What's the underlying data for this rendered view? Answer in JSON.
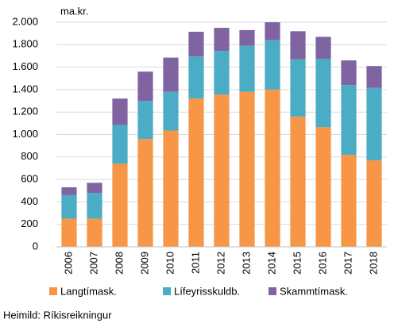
{
  "chart_data": {
    "type": "stacked_bar",
    "unit_label": "ma.kr.",
    "source": "Heimild: Ríkisreikningur",
    "categories": [
      "2006",
      "2007",
      "2008",
      "2009",
      "2010",
      "2011",
      "2012",
      "2013",
      "2014",
      "2015",
      "2016",
      "2017",
      "2018"
    ],
    "series": [
      {
        "name": "Langtímask.",
        "color": "#f79646",
        "values": [
          250,
          250,
          740,
          960,
          1035,
          1320,
          1355,
          1380,
          1400,
          1160,
          1065,
          820,
          770
        ]
      },
      {
        "name": "Lífeyrisskuldb.",
        "color": "#4bacc6",
        "values": [
          210,
          230,
          345,
          340,
          345,
          375,
          390,
          410,
          440,
          510,
          610,
          620,
          645
        ]
      },
      {
        "name": "Skammtímask.",
        "color": "#8064a2",
        "values": [
          70,
          90,
          235,
          260,
          305,
          220,
          205,
          140,
          160,
          250,
          195,
          220,
          195
        ]
      }
    ],
    "ylim": [
      0,
      2000
    ],
    "yticks": [
      0,
      200,
      400,
      600,
      800,
      {
        "value": 1000,
        "label": "1.000"
      },
      {
        "value": 1200,
        "label": "1.200"
      },
      {
        "value": 1400,
        "label": "1.400"
      },
      {
        "value": 1600,
        "label": "1.600"
      },
      {
        "value": 1800,
        "label": "1.800"
      },
      {
        "value": 2000,
        "label": "2.000"
      }
    ],
    "grid": true,
    "legend": "bottom"
  }
}
